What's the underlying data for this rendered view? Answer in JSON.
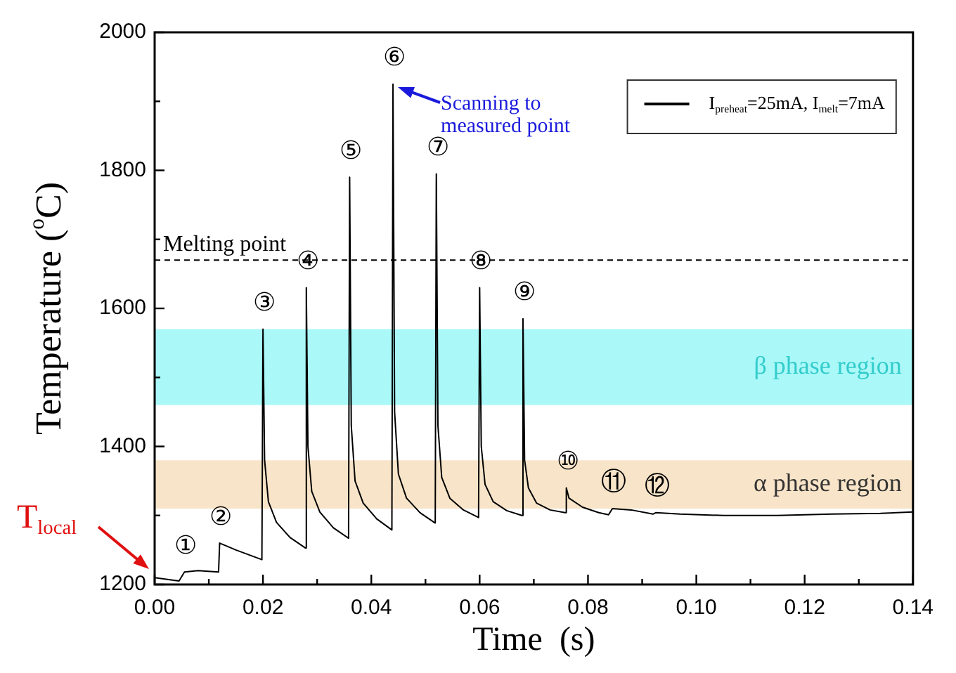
{
  "chart_data": {
    "type": "line",
    "xlabel": "Time  (s)",
    "ylabel": "Temperature ($^{o}$C)",
    "xlim": [
      0,
      0.14
    ],
    "ylim": [
      1200,
      2000
    ],
    "xticks": [
      {
        "value": 0,
        "label": "0.00"
      },
      {
        "value": 0.01,
        "label": null
      },
      {
        "value": 0.02,
        "label": "0.02"
      },
      {
        "value": 0.03,
        "label": null
      },
      {
        "value": 0.04,
        "label": "0.04"
      },
      {
        "value": 0.05,
        "label": null
      },
      {
        "value": 0.06,
        "label": "0.06"
      },
      {
        "value": 0.07,
        "label": null
      },
      {
        "value": 0.08,
        "label": "0.08"
      },
      {
        "value": 0.09,
        "label": null
      },
      {
        "value": 0.1,
        "label": "0.10"
      },
      {
        "value": 0.11,
        "label": null
      },
      {
        "value": 0.12,
        "label": "0.12"
      },
      {
        "value": 0.13,
        "label": null
      },
      {
        "value": 0.14,
        "label": "0.14"
      }
    ],
    "yticks": [
      1200,
      {
        "value": 1300,
        "label": null
      },
      1400,
      {
        "value": 1500,
        "label": null
      },
      1600,
      {
        "value": 1700,
        "label": null
      },
      1800,
      {
        "value": 1900,
        "label": null
      },
      2000
    ],
    "legend": "top right",
    "grid": false,
    "marker": "none",
    "line_style": "solid",
    "series": [
      {
        "name": "I$_{preheat}$=25mA, I$_{melt}$=7mA",
        "color": "#000000",
        "x": [
          0,
          0.0035,
          0.0045,
          0.0055,
          0.008,
          0.0118,
          0.012,
          0.015,
          0.0198,
          0.02,
          0.0203,
          0.021,
          0.0225,
          0.025,
          0.0278,
          0.028,
          0.0283,
          0.029,
          0.0305,
          0.033,
          0.0358,
          0.036,
          0.0363,
          0.037,
          0.0385,
          0.041,
          0.0438,
          0.044,
          0.0443,
          0.045,
          0.0465,
          0.049,
          0.0518,
          0.052,
          0.0523,
          0.053,
          0.0545,
          0.057,
          0.0598,
          0.06,
          0.0603,
          0.061,
          0.0625,
          0.065,
          0.0678,
          0.068,
          0.0683,
          0.069,
          0.0705,
          0.073,
          0.0758,
          0.076,
          0.0765,
          0.079,
          0.082,
          0.0838,
          0.0845,
          0.088,
          0.092,
          0.0925,
          0.097,
          0.105,
          0.115,
          0.125,
          0.134,
          0.14
        ],
        "values": [
          1210,
          1206,
          1205,
          1218,
          1220,
          1218,
          1260,
          1250,
          1236,
          1570,
          1380,
          1320,
          1290,
          1268,
          1253,
          1630,
          1400,
          1335,
          1305,
          1282,
          1267,
          1790,
          1430,
          1350,
          1318,
          1295,
          1279,
          1925,
          1450,
          1360,
          1325,
          1304,
          1289,
          1795,
          1430,
          1355,
          1325,
          1308,
          1297,
          1630,
          1400,
          1345,
          1320,
          1307,
          1300,
          1585,
          1380,
          1340,
          1318,
          1308,
          1304,
          1340,
          1325,
          1312,
          1304,
          1301,
          1310,
          1308,
          1302,
          1304,
          1302,
          1300,
          1300,
          1302,
          1303,
          1305
        ]
      }
    ],
    "ref_lines": [
      {
        "axis": "y",
        "value": 1670,
        "label": "Melting point",
        "color": "#000000",
        "line_style": "dashed"
      }
    ],
    "bands": [
      {
        "axis": "y",
        "from": 1460,
        "to": 1570,
        "label": "β phase region",
        "color": "#aaf8f8"
      },
      {
        "axis": "y",
        "from": 1310,
        "to": 1380,
        "label": "α phase region",
        "color": "#f8e4c8"
      }
    ],
    "annotations": [
      {
        "text": "①",
        "x": 0.0055,
        "y": 1218
      },
      {
        "text": "②",
        "x": 0.012,
        "y": 1260
      },
      {
        "text": "③",
        "x": 0.02,
        "y": 1570
      },
      {
        "text": "④",
        "x": 0.028,
        "y": 1630
      },
      {
        "text": "⑤",
        "x": 0.036,
        "y": 1790
      },
      {
        "text": "⑥",
        "x": 0.044,
        "y": 1925
      },
      {
        "text": "⑦",
        "x": 0.052,
        "y": 1795
      },
      {
        "text": "⑧",
        "x": 0.06,
        "y": 1630
      },
      {
        "text": "⑨",
        "x": 0.068,
        "y": 1585
      },
      {
        "text": "⑩",
        "x": 0.076,
        "y": 1340
      },
      {
        "text": "⑪",
        "x": 0.0845,
        "y": 1310
      },
      {
        "text": "⑫",
        "x": 0.0925,
        "y": 1304
      },
      {
        "text": "Scanning to measured point",
        "x": 0.044,
        "y": 1925
      },
      {
        "text": "T$_{local}$",
        "x": 0,
        "y": 1210
      }
    ]
  }
}
